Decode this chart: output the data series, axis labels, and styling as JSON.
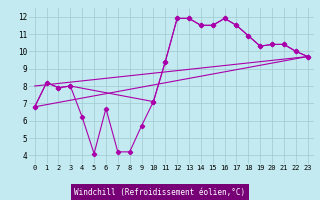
{
  "xlabel": "Windchill (Refroidissement éolien,°C)",
  "bg_color": "#c2eaf0",
  "grid_color": "#a0c8d0",
  "line_color": "#aa00aa",
  "xlim": [
    -0.5,
    23.5
  ],
  "ylim": [
    3.5,
    12.5
  ],
  "xticks": [
    0,
    1,
    2,
    3,
    4,
    5,
    6,
    7,
    8,
    9,
    10,
    11,
    12,
    13,
    14,
    15,
    16,
    17,
    18,
    19,
    20,
    21,
    22,
    23
  ],
  "yticks": [
    4,
    5,
    6,
    7,
    8,
    9,
    10,
    11,
    12
  ],
  "series1_x": [
    0,
    1,
    2,
    3,
    4,
    5,
    6,
    7,
    8,
    9,
    10,
    11,
    12,
    13,
    14,
    15,
    16,
    17,
    18,
    19,
    20,
    21,
    22,
    23
  ],
  "series1_y": [
    6.8,
    8.2,
    7.9,
    8.0,
    6.2,
    4.1,
    6.7,
    4.2,
    4.2,
    5.7,
    7.1,
    9.4,
    11.9,
    11.9,
    11.5,
    11.5,
    11.9,
    11.5,
    10.9,
    10.3,
    10.4,
    10.4,
    10.0,
    9.7
  ],
  "series2_x": [
    0,
    1,
    2,
    3,
    10,
    11,
    12,
    13,
    14,
    15,
    16,
    17,
    18,
    19,
    20,
    21,
    22,
    23
  ],
  "series2_y": [
    6.8,
    8.2,
    7.9,
    8.0,
    7.1,
    9.4,
    11.9,
    11.9,
    11.5,
    11.5,
    11.9,
    11.5,
    10.9,
    10.3,
    10.4,
    10.4,
    10.0,
    9.7
  ],
  "series3_x": [
    0,
    23
  ],
  "series3_y": [
    8.0,
    9.7
  ],
  "series4_x": [
    0,
    23
  ],
  "series4_y": [
    6.8,
    9.7
  ],
  "xlabel_bg": "#770077",
  "xlabel_fg": "#ffffff",
  "tick_fontsize": 5,
  "xlabel_fontsize": 5.5
}
